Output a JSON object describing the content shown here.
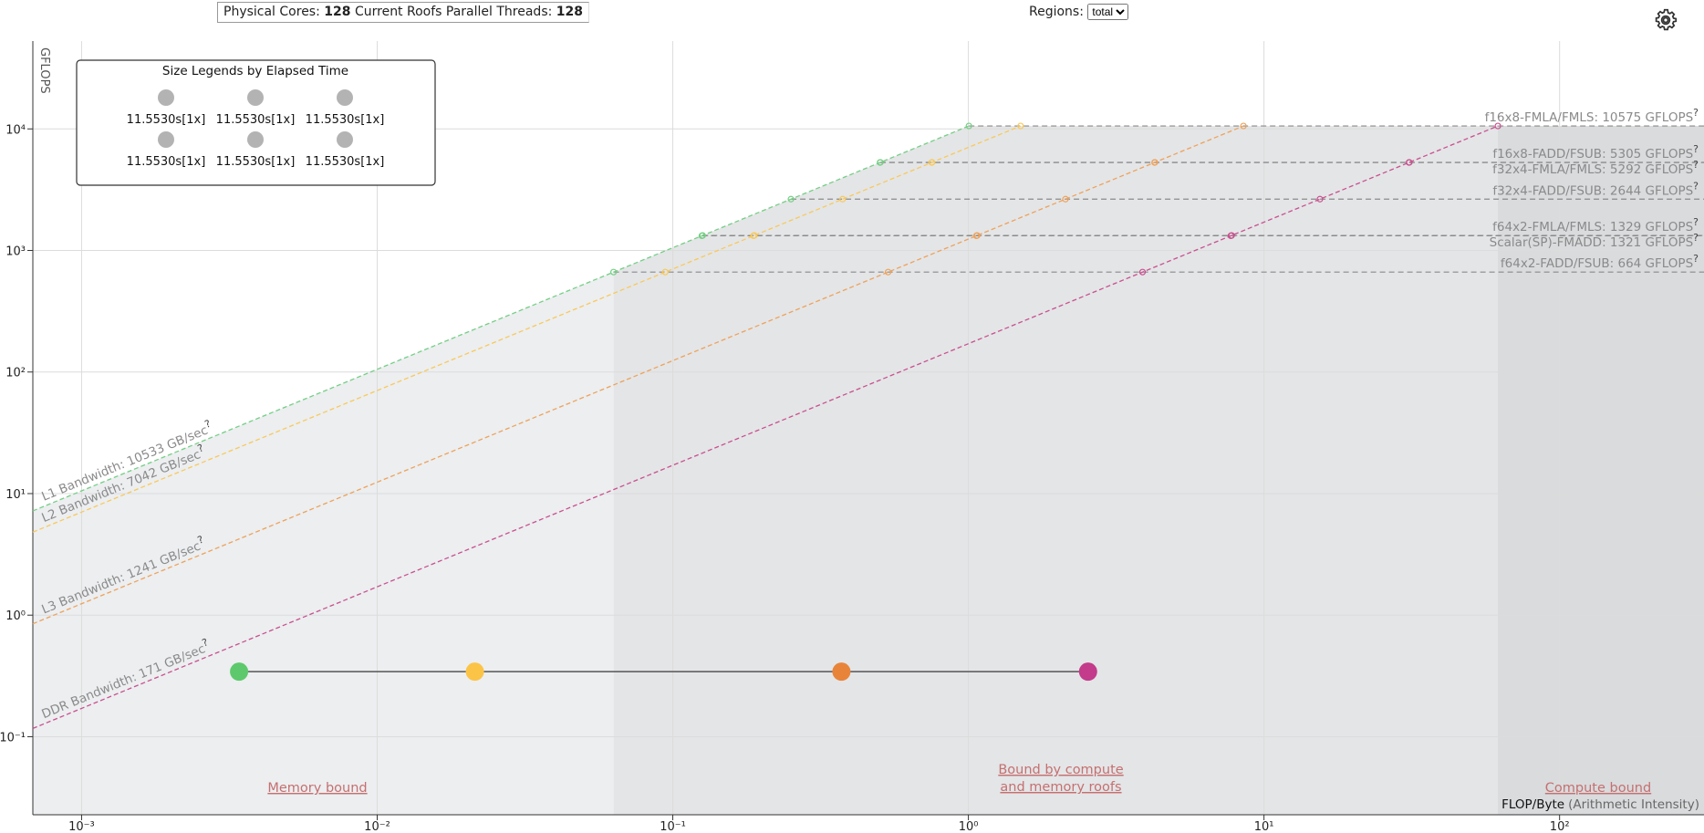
{
  "header": {
    "physical_cores_label": "Physical Cores:",
    "physical_cores": 128,
    "threads_label": "Current Roofs Parallel Threads:",
    "threads": 128,
    "regions_label": "Regions:",
    "region_option": "total"
  },
  "chart_data": {
    "type": "roofline",
    "y_label": "GFLOPS",
    "x_label": "FLOP/Byte",
    "x_label_note": "(Arithmetic Intensity)",
    "xscale": "log",
    "yscale": "log",
    "xlim": [
      0.000684,
      308
    ],
    "ylim": [
      0.0228,
      52800
    ],
    "xticks": [
      {
        "value": 0.001,
        "label": "10⁻³"
      },
      {
        "value": 0.01,
        "label": "10⁻²"
      },
      {
        "value": 0.1,
        "label": "10⁻¹"
      },
      {
        "value": 1,
        "label": "10⁰"
      },
      {
        "value": 10,
        "label": "10¹"
      },
      {
        "value": 100,
        "label": "10²"
      }
    ],
    "yticks": [
      {
        "value": 0.1,
        "label": "10⁻¹"
      },
      {
        "value": 1,
        "label": "10⁰"
      },
      {
        "value": 10,
        "label": "10¹"
      },
      {
        "value": 100,
        "label": "10²"
      },
      {
        "value": 1000,
        "label": "10³"
      },
      {
        "value": 10000,
        "label": "10⁴"
      }
    ],
    "grid": true,
    "help_mark": "?",
    "legend": {
      "title": "Size Legends by Elapsed Time",
      "entries": [
        "11.5530s[1x]",
        "11.5530s[1x]",
        "11.5530s[1x]",
        "11.5530s[1x]",
        "11.5530s[1x]",
        "11.5530s[1x]"
      ],
      "color": "#b3b3b3"
    },
    "memory_roofs": [
      {
        "label": "L1 Bandwidth: 10533 GB/sec",
        "value": 10533,
        "color": "#74cf84"
      },
      {
        "label": "L2 Bandwidth: 7042 GB/sec",
        "value": 7042,
        "color": "#f9c95a"
      },
      {
        "label": "L3 Bandwidth: 1241 GB/sec",
        "value": 1241,
        "color": "#eea25a"
      },
      {
        "label": "DDR Bandwidth: 171 GB/sec",
        "value": 171,
        "color": "#c9508f"
      }
    ],
    "compute_roofs": [
      {
        "label": "f16x8-FMLA/FMLS: 10575 GFLOPS",
        "value": 10575
      },
      {
        "label": "f16x8-FADD/FSUB: 5305 GFLOPS",
        "value": 5305
      },
      {
        "label": "f32x4-FMLA/FMLS: 5292 GFLOPS",
        "value": 5292
      },
      {
        "label": "f32x4-FADD/FSUB: 2644 GFLOPS",
        "value": 2644
      },
      {
        "label": "f64x2-FMLA/FMLS: 1329 GFLOPS",
        "value": 1329
      },
      {
        "label": "Scalar(SP)-FMADD: 1321 GFLOPS",
        "value": 1321
      },
      {
        "label": "f64x2-FADD/FSUB: 664 GFLOPS",
        "value": 664
      }
    ],
    "roof_color": "#8a8a8a",
    "region_labels": {
      "memory": "Memory bound",
      "mixed": [
        "Bound by compute",
        "and memory roofs"
      ],
      "compute": "Compute bound"
    },
    "points": {
      "x": [
        0.00341,
        0.0214,
        0.372,
        2.54
      ],
      "y": [
        0.343,
        0.343,
        0.343,
        0.343
      ],
      "colors": [
        "#5dc96c",
        "#fcc447",
        "#e8843a",
        "#c33b8a"
      ]
    }
  }
}
